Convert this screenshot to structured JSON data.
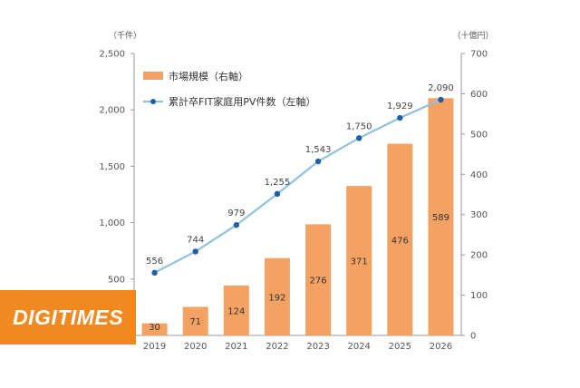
{
  "chart_data": {
    "type": "bar+line",
    "categories": [
      "2019",
      "2020",
      "2021",
      "2022",
      "2023",
      "2024",
      "2025",
      "2026"
    ],
    "series": [
      {
        "name": "市場規模（右軸）",
        "type": "bar",
        "axis": "right",
        "color": "#f4a263",
        "values": [
          30,
          71,
          124,
          192,
          276,
          371,
          476,
          589
        ],
        "labels": [
          "30",
          "71",
          "124",
          "192",
          "276",
          "371",
          "476",
          "589"
        ]
      },
      {
        "name": "累計卒FIT家庭用PV件数（左軸）",
        "type": "line",
        "axis": "left",
        "color": "#8fc1e3",
        "marker_color": "#1f5fa8",
        "values": [
          556,
          744,
          979,
          1255,
          1543,
          1750,
          1929,
          2090
        ],
        "labels": [
          "556",
          "744",
          "979",
          "1,255",
          "1,543",
          "1,750",
          "1,929",
          "2,090"
        ]
      }
    ],
    "left_axis": {
      "unit": "（千件）",
      "min": 0,
      "max": 2500,
      "ticks": [
        0,
        500,
        1000,
        1500,
        2000,
        2500
      ],
      "tick_labels": [
        "",
        "500",
        "1,000",
        "1,500",
        "2,000",
        "2,500"
      ]
    },
    "right_axis": {
      "unit": "（十億円）",
      "min": 0,
      "max": 700,
      "ticks": [
        0,
        100,
        200,
        300,
        400,
        500,
        600,
        700
      ],
      "tick_labels": [
        "0",
        "100",
        "200",
        "300",
        "400",
        "500",
        "600",
        "700"
      ]
    },
    "legend_position": "top-left",
    "grid": false
  },
  "watermark": {
    "text": "DIGITIMES",
    "color": "#f0891f"
  }
}
